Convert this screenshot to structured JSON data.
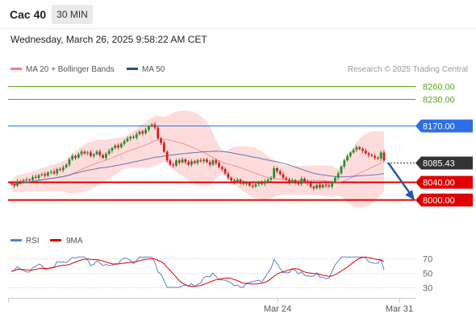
{
  "header": {
    "instrument": "Cac 40",
    "timeframe": "30 MIN"
  },
  "datetime": "Wednesday, March 26, 2025 9:58:22 AM CET",
  "legend": {
    "ma20": "MA 20 + Bollinger Bands",
    "ma50": "MA 50",
    "credit": "Research © 2025 Trading Central"
  },
  "levels": [
    {
      "value": "8260.00",
      "kind": "target",
      "color": "#5aa51f"
    },
    {
      "value": "8230.00",
      "kind": "target",
      "color": "#5aa51f"
    },
    {
      "value": "8170.00",
      "kind": "pivot",
      "color": "#2d6ee8"
    },
    {
      "value": "8085.43",
      "kind": "last",
      "color": "#333333"
    },
    {
      "value": "8040.00",
      "kind": "support",
      "color": "#e00000"
    },
    {
      "value": "8000.00",
      "kind": "support",
      "color": "#e00000"
    }
  ],
  "rsi_legend": {
    "rsi": "RSI",
    "ma9": "9MA"
  },
  "rsi_axis": [
    "70",
    "50",
    "30"
  ],
  "x_axis": [
    "Mar 24",
    "Mar 31"
  ],
  "colors": {
    "bull": "#2e8b2e",
    "bear": "#d02020",
    "bollinger_fill": "#ffd6d6",
    "ma20": "#f08080",
    "ma50": "#3a5faf",
    "rsi": "#5b7fd6",
    "rsi_ma": "#e00000",
    "arrow": "#2a5aa0"
  }
}
